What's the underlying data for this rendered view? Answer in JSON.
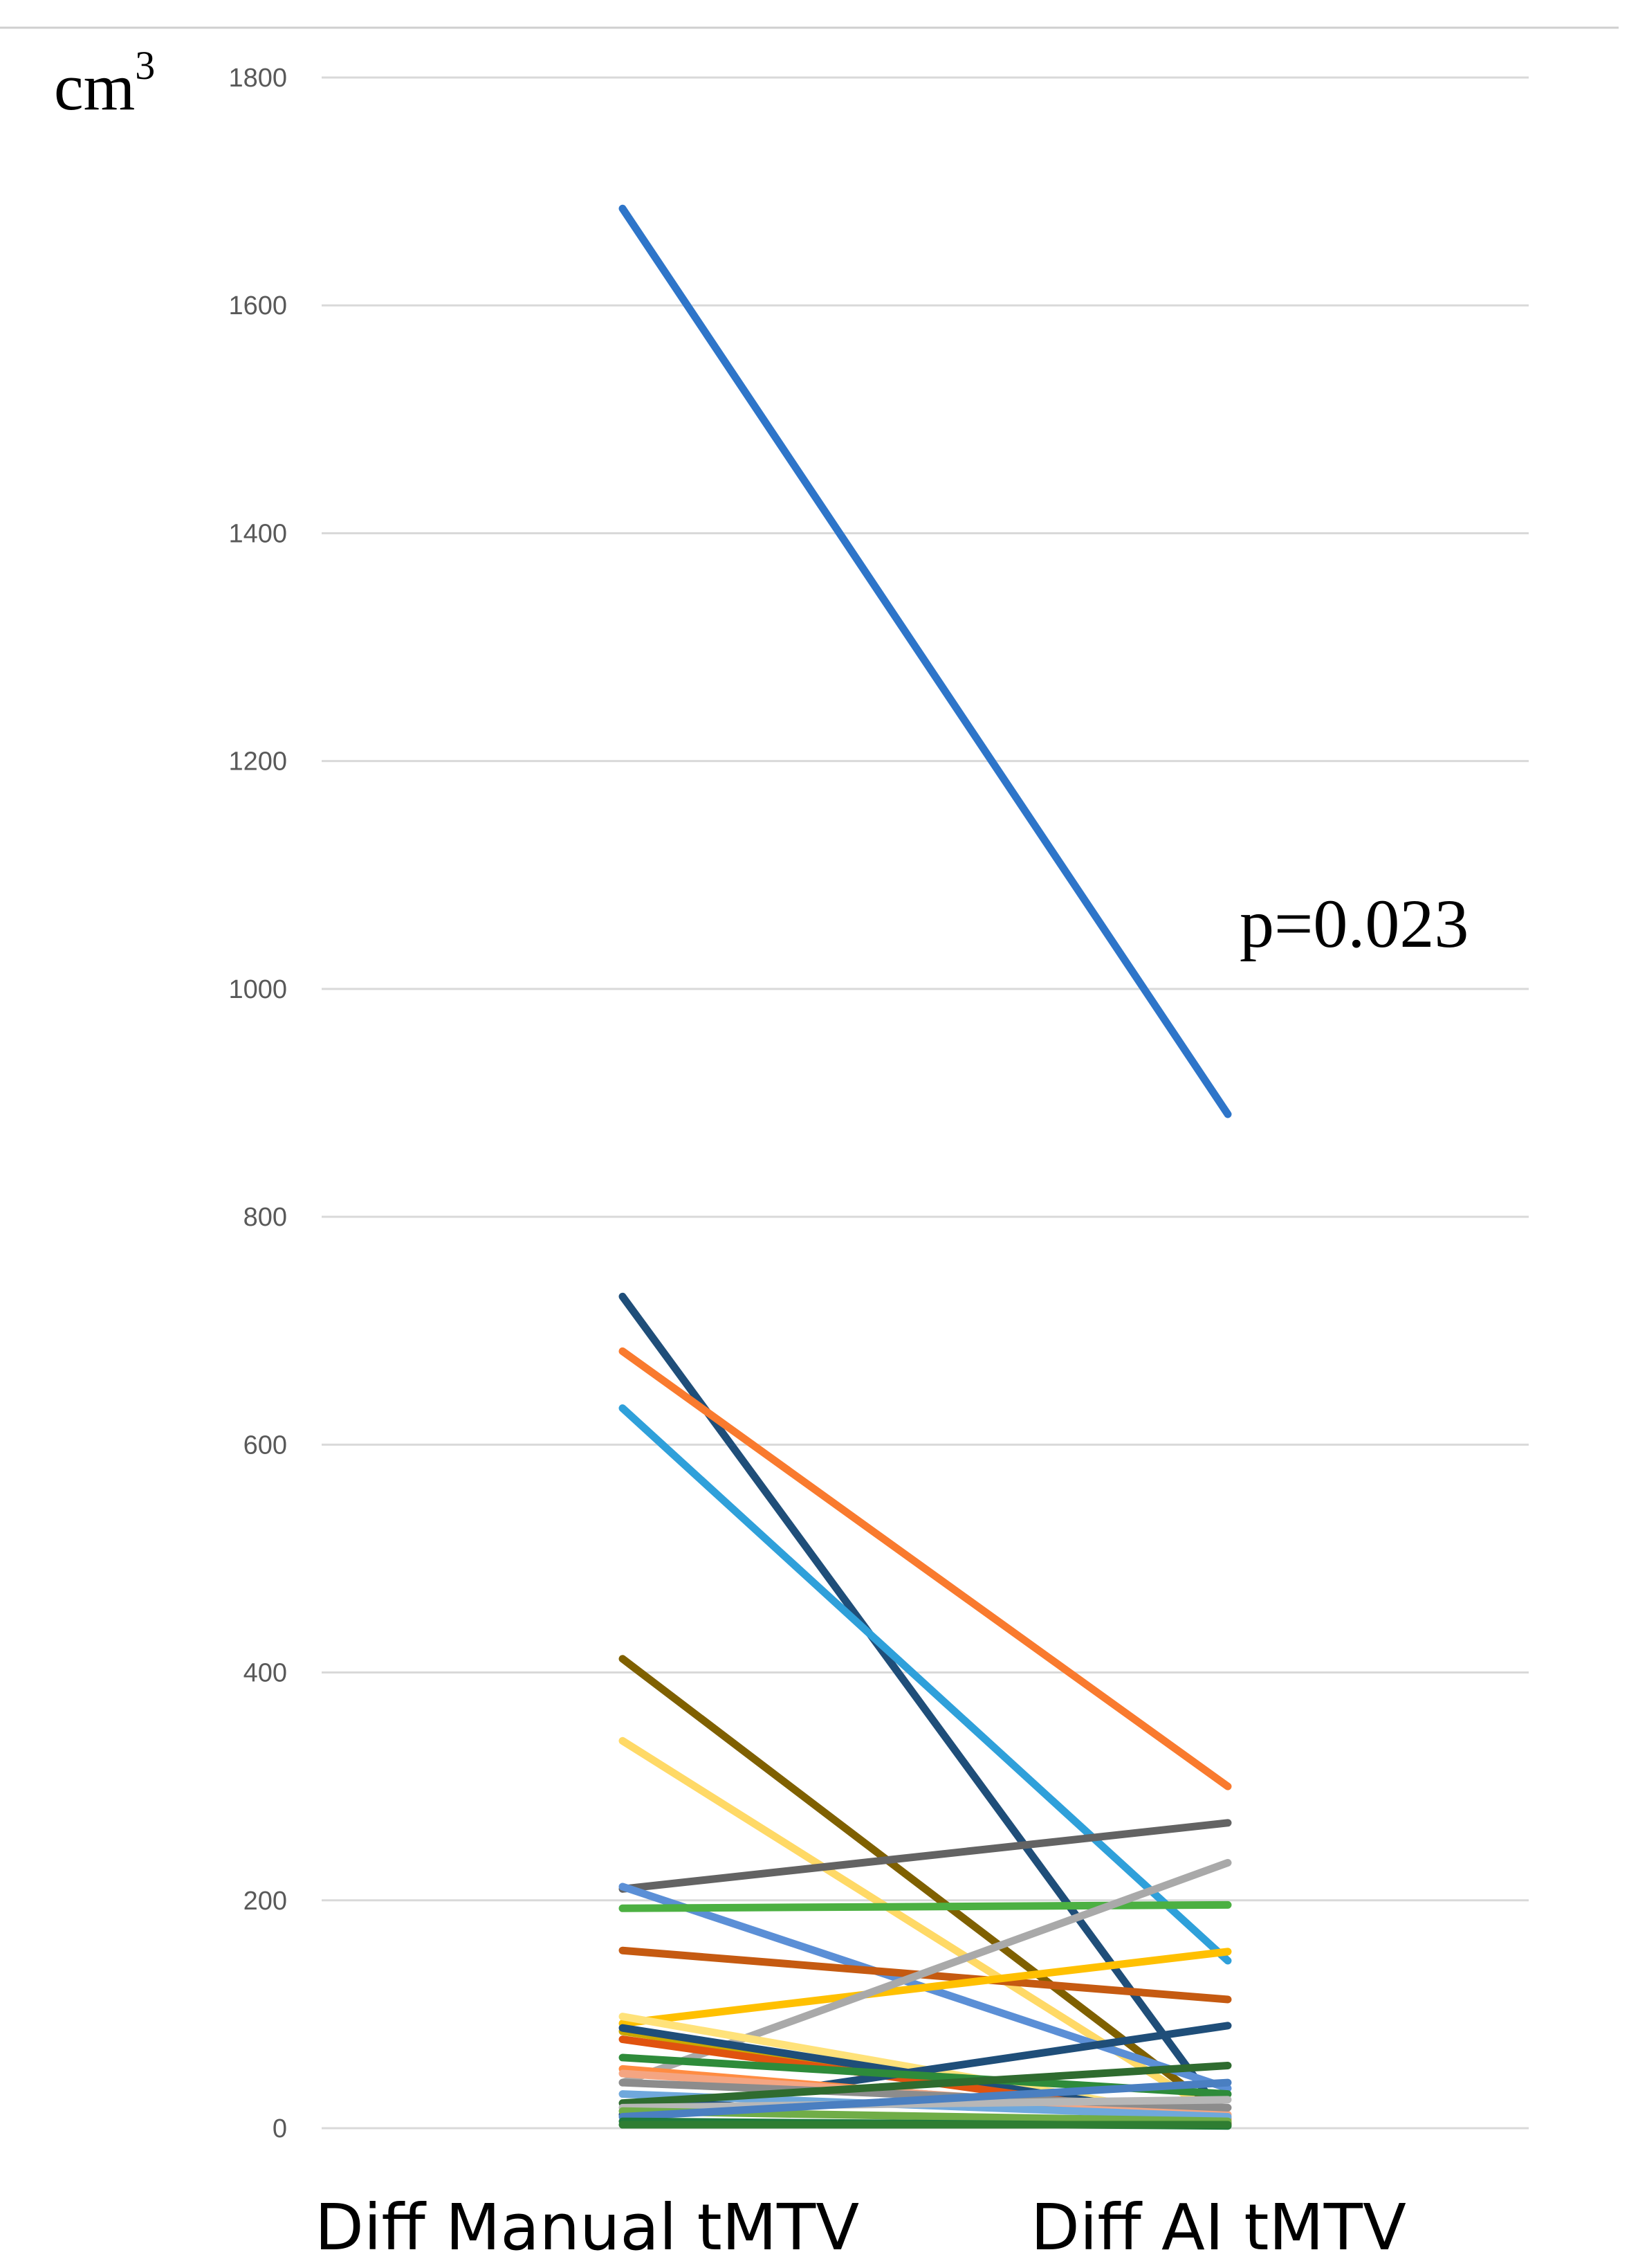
{
  "chart_data": {
    "type": "line",
    "categories": [
      "Diff Manual tMTV",
      "Diff AI tMTV"
    ],
    "yunit": "cm",
    "yunit_exponent": "3",
    "annotation": "p=0.023",
    "ylim": [
      0,
      1800
    ],
    "yticks": [
      0,
      200,
      400,
      600,
      800,
      1000,
      1200,
      1400,
      1600,
      1800
    ],
    "grid": true,
    "legend": "none",
    "series": [
      {
        "values": [
          1685,
          890
        ],
        "color": "#2E75C9"
      },
      {
        "values": [
          730,
          5
        ],
        "color": "#1F4E79"
      },
      {
        "values": [
          682,
          300
        ],
        "color": "#F97A2E"
      },
      {
        "values": [
          632,
          147
        ],
        "color": "#2FA0DA"
      },
      {
        "values": [
          412,
          8
        ],
        "color": "#7F6000"
      },
      {
        "values": [
          340,
          6
        ],
        "color": "#FFD966"
      },
      {
        "values": [
          210,
          268
        ],
        "color": "#636363"
      },
      {
        "values": [
          212,
          35
        ],
        "color": "#5B8FD6"
      },
      {
        "values": [
          193,
          196
        ],
        "color": "#4CB042"
      },
      {
        "values": [
          156,
          113
        ],
        "color": "#C55A11"
      },
      {
        "values": [
          92,
          155
        ],
        "color": "#FFC000"
      },
      {
        "values": [
          40,
          233
        ],
        "color": "#A9A9A9"
      },
      {
        "values": [
          98,
          5
        ],
        "color": "#FFE27A"
      },
      {
        "values": [
          85,
          5
        ],
        "color": "#C9A800"
      },
      {
        "values": [
          88,
          5
        ],
        "color": "#1F4E79"
      },
      {
        "values": [
          78,
          4
        ],
        "color": "#E0530F"
      },
      {
        "values": [
          12,
          90
        ],
        "color": "#1F4E79"
      },
      {
        "values": [
          62,
          30
        ],
        "color": "#2E8B3A"
      },
      {
        "values": [
          52,
          8
        ],
        "color": "#FF8C42"
      },
      {
        "values": [
          48,
          12
        ],
        "color": "#F4A582"
      },
      {
        "values": [
          40,
          18
        ],
        "color": "#8C8C8C"
      },
      {
        "values": [
          30,
          10
        ],
        "color": "#6FA8DC"
      },
      {
        "values": [
          22,
          55
        ],
        "color": "#2F6B2F"
      },
      {
        "values": [
          18,
          25
        ],
        "color": "#B7B7B7"
      },
      {
        "values": [
          15,
          6
        ],
        "color": "#70AD47"
      },
      {
        "values": [
          10,
          40
        ],
        "color": "#4A7FC1"
      },
      {
        "values": [
          6,
          2
        ],
        "color": "#1E7A3C"
      },
      {
        "values": [
          3,
          3
        ],
        "color": "#2E7D32"
      }
    ]
  }
}
